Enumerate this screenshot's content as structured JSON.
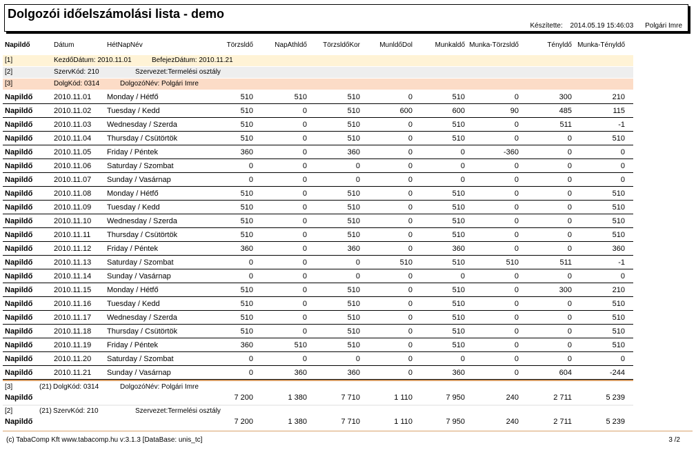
{
  "title": "Dolgozói időelszámolási lista - demo",
  "meta": {
    "created_label": "Készítette:",
    "created_value": "2014.05.19 15:46:03",
    "author": "Polgári Imre"
  },
  "columns": {
    "c0": "Napildő",
    "c1": "Dátum",
    "c2": "HétNapNév",
    "c3": "Törzsldő",
    "c4": "NapÁthldő",
    "c5": "TörzsldőKor",
    "c6": "MunldőDol",
    "c7": "Munkaldő",
    "c8": "Munka-Törzsldő",
    "c9": "Tényldő",
    "c10": "Munka-Tényldő"
  },
  "bands": {
    "b1": {
      "tag": "[1]",
      "text1": "KezdőDátum: 2010.11.01",
      "text2": "BefejezDátum: 2010.11.21",
      "color": "#fff3d6"
    },
    "b2": {
      "tag": "[2]",
      "text1": "SzervKód: 210",
      "text2": "Szervezet:Termelési osztály",
      "color": "#eeeeee"
    },
    "b3": {
      "tag": "[3]",
      "text1": "DolgKód:  0314",
      "text2": "DolgozóNév:  Polgári Imre",
      "color": "#fcdcc7"
    }
  },
  "rows": [
    {
      "label": "Napildő",
      "date": "2010.11.01",
      "day": "Monday / Hétfő",
      "v": [
        "510",
        "510",
        "510",
        "0",
        "510",
        "0",
        "300",
        "210"
      ]
    },
    {
      "label": "Napildő",
      "date": "2010.11.02",
      "day": "Tuesday / Kedd",
      "v": [
        "510",
        "0",
        "510",
        "600",
        "600",
        "90",
        "485",
        "115"
      ]
    },
    {
      "label": "Napildő",
      "date": "2010.11.03",
      "day": "Wednesday / Szerda",
      "v": [
        "510",
        "0",
        "510",
        "0",
        "510",
        "0",
        "511",
        "-1"
      ]
    },
    {
      "label": "Napildő",
      "date": "2010.11.04",
      "day": "Thursday / Csütörtök",
      "v": [
        "510",
        "0",
        "510",
        "0",
        "510",
        "0",
        "0",
        "510"
      ]
    },
    {
      "label": "Napildő",
      "date": "2010.11.05",
      "day": "Friday / Péntek",
      "v": [
        "360",
        "0",
        "360",
        "0",
        "0",
        "-360",
        "0",
        "0"
      ]
    },
    {
      "label": "Napildő",
      "date": "2010.11.06",
      "day": "Saturday / Szombat",
      "v": [
        "0",
        "0",
        "0",
        "0",
        "0",
        "0",
        "0",
        "0"
      ]
    },
    {
      "label": "Napildő",
      "date": "2010.11.07",
      "day": "Sunday / Vasárnap",
      "v": [
        "0",
        "0",
        "0",
        "0",
        "0",
        "0",
        "0",
        "0"
      ]
    },
    {
      "label": "Napildő",
      "date": "2010.11.08",
      "day": "Monday / Hétfő",
      "v": [
        "510",
        "0",
        "510",
        "0",
        "510",
        "0",
        "0",
        "510"
      ]
    },
    {
      "label": "Napildő",
      "date": "2010.11.09",
      "day": "Tuesday / Kedd",
      "v": [
        "510",
        "0",
        "510",
        "0",
        "510",
        "0",
        "0",
        "510"
      ]
    },
    {
      "label": "Napildő",
      "date": "2010.11.10",
      "day": "Wednesday / Szerda",
      "v": [
        "510",
        "0",
        "510",
        "0",
        "510",
        "0",
        "0",
        "510"
      ]
    },
    {
      "label": "Napildő",
      "date": "2010.11.11",
      "day": "Thursday / Csütörtök",
      "v": [
        "510",
        "0",
        "510",
        "0",
        "510",
        "0",
        "0",
        "510"
      ]
    },
    {
      "label": "Napildő",
      "date": "2010.11.12",
      "day": "Friday / Péntek",
      "v": [
        "360",
        "0",
        "360",
        "0",
        "360",
        "0",
        "0",
        "360"
      ]
    },
    {
      "label": "Napildő",
      "date": "2010.11.13",
      "day": "Saturday / Szombat",
      "v": [
        "0",
        "0",
        "0",
        "510",
        "510",
        "510",
        "511",
        "-1"
      ]
    },
    {
      "label": "Napildő",
      "date": "2010.11.14",
      "day": "Sunday / Vasárnap",
      "v": [
        "0",
        "0",
        "0",
        "0",
        "0",
        "0",
        "0",
        "0"
      ]
    },
    {
      "label": "Napildő",
      "date": "2010.11.15",
      "day": "Monday / Hétfő",
      "v": [
        "510",
        "0",
        "510",
        "0",
        "510",
        "0",
        "300",
        "210"
      ]
    },
    {
      "label": "Napildő",
      "date": "2010.11.16",
      "day": "Tuesday / Kedd",
      "v": [
        "510",
        "0",
        "510",
        "0",
        "510",
        "0",
        "0",
        "510"
      ]
    },
    {
      "label": "Napildő",
      "date": "2010.11.17",
      "day": "Wednesday / Szerda",
      "v": [
        "510",
        "0",
        "510",
        "0",
        "510",
        "0",
        "0",
        "510"
      ]
    },
    {
      "label": "Napildő",
      "date": "2010.11.18",
      "day": "Thursday / Csütörtök",
      "v": [
        "510",
        "0",
        "510",
        "0",
        "510",
        "0",
        "0",
        "510"
      ]
    },
    {
      "label": "Napildő",
      "date": "2010.11.19",
      "day": "Friday / Péntek",
      "v": [
        "360",
        "510",
        "510",
        "0",
        "510",
        "0",
        "0",
        "510"
      ]
    },
    {
      "label": "Napildő",
      "date": "2010.11.20",
      "day": "Saturday / Szombat",
      "v": [
        "0",
        "0",
        "0",
        "0",
        "0",
        "0",
        "0",
        "0"
      ]
    },
    {
      "label": "Napildő",
      "date": "2010.11.21",
      "day": "Sunday / Vasárnap",
      "v": [
        "0",
        "360",
        "360",
        "0",
        "360",
        "0",
        "604",
        "-244"
      ]
    }
  ],
  "summary1": {
    "tag": "[3]",
    "count": "(21)",
    "text1": "DolgKód:  0314",
    "text2": "DolgozóNév:  Polgári Imre",
    "label": "Napildő",
    "v": [
      "7 200",
      "1 380",
      "7 710",
      "1 110",
      "7 950",
      "240",
      "2 711",
      "5 239"
    ]
  },
  "summary2": {
    "tag": "[2]",
    "count": "(21)",
    "text1": "SzervKód: 210",
    "text2": "Szervezet:Termelési osztály",
    "label": "Napildő",
    "v": [
      "7 200",
      "1 380",
      "7 710",
      "1 110",
      "7 950",
      "240",
      "2 711",
      "5 239"
    ]
  },
  "footer": {
    "text": "(c) TabaComp Kft  www.tabacomp.hu  v:3.1.3 [DataBase: unis_tc]",
    "page": "3  /2"
  },
  "colors": {
    "band_line": "#d9a06a"
  }
}
